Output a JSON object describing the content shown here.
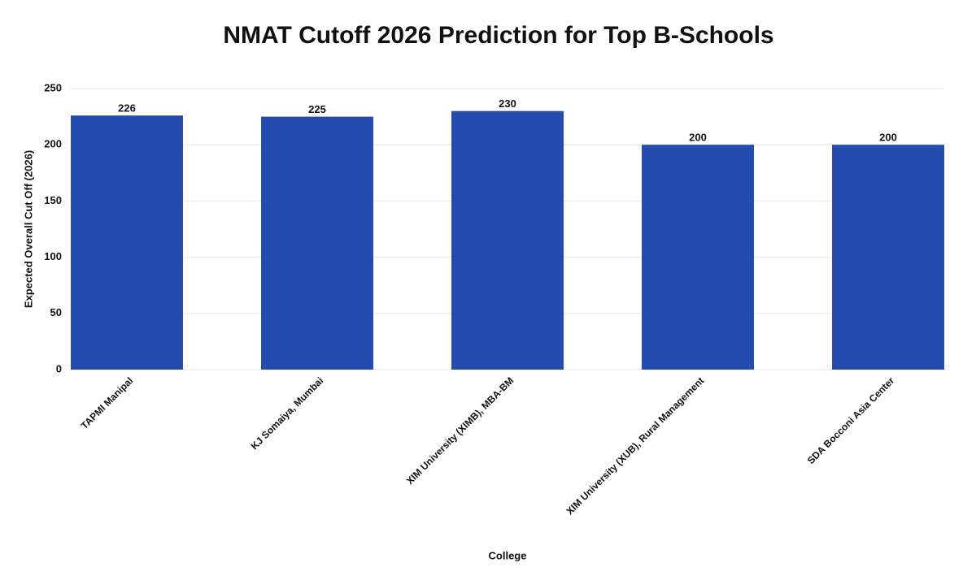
{
  "chart_data": {
    "type": "bar",
    "title": "NMAT Cutoff 2026 Prediction for Top B-Schools",
    "x_label": "College",
    "y_label": "Expected Overall Cut Off (2026)",
    "categories": [
      "TAPMI Manipal",
      "KJ Somaiya, Mumbai",
      "XIM University (XIMB), MBA-BM",
      "XIM University (XUB), Rural Management",
      "SDA Bocconi Asia Center"
    ],
    "values": [
      226,
      225,
      230,
      200,
      200
    ],
    "color": "#244bae",
    "ylim": [
      0,
      250
    ],
    "yticks": [
      0,
      50,
      100,
      150,
      200,
      250
    ],
    "grid": true
  }
}
